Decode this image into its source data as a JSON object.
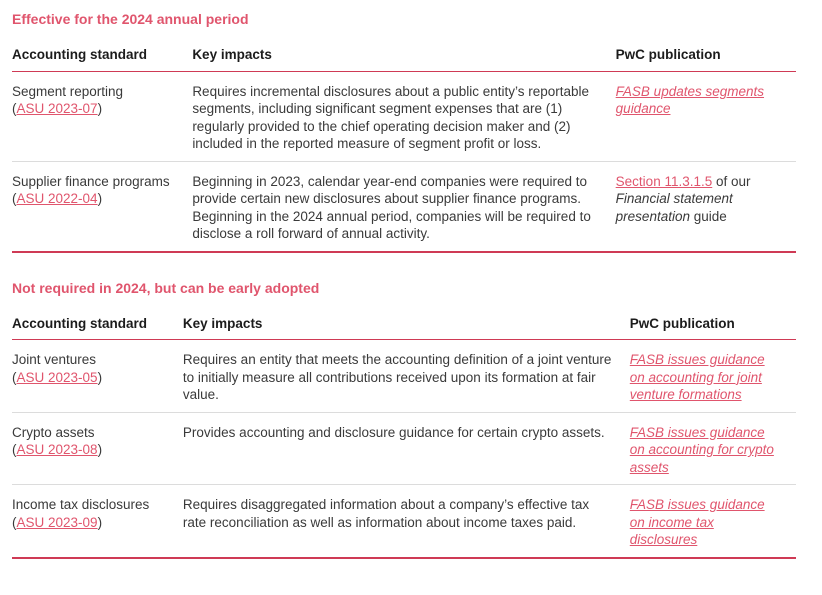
{
  "colors": {
    "accent_rose": "#e0556d",
    "rule_red": "#cf3a55",
    "row_divider": "#dcdcdc",
    "header_text": "#1c1c1c",
    "body_text": "#3a3a3a"
  },
  "sections": [
    {
      "heading": "Effective for the 2024 annual period",
      "columns": [
        "Accounting standard",
        "Key impacts",
        "PwC publication"
      ],
      "rows": [
        {
          "standard": "Segment reporting",
          "asu": "ASU 2023-07",
          "impact": "Requires incremental disclosures about a public entity’s reportable segments, including significant segment expenses that are (1) regularly provided to the chief operating decision maker and (2) included in the reported measure of segment profit or loss.",
          "publication": [
            {
              "text": "FASB updates segments guidance",
              "type": "link_italic"
            }
          ]
        },
        {
          "standard": "Supplier finance programs",
          "asu": "ASU 2022-04",
          "impact": "Beginning in 2023, calendar year-end companies were required to provide certain new disclosures about supplier finance programs. Beginning in the 2024 annual period, companies will be required to disclose a roll forward of annual activity.",
          "publication": [
            {
              "text": "Section 11.3.1.5",
              "type": "link"
            },
            {
              "text": " of our ",
              "type": "plain"
            },
            {
              "text": "Financial statement presentation",
              "type": "italic"
            },
            {
              "text": " guide",
              "type": "plain"
            }
          ]
        }
      ]
    },
    {
      "heading": "Not required in 2024, but can be early adopted",
      "columns": [
        "Accounting standard",
        "Key impacts",
        "PwC publication"
      ],
      "rows": [
        {
          "standard": "Joint ventures",
          "asu": "ASU 2023-05",
          "impact": "Requires an entity that meets the accounting definition of a joint venture to initially measure all contributions received upon its formation at fair value.",
          "publication": [
            {
              "text": "FASB issues guidance on accounting for joint venture formations",
              "type": "link_italic"
            }
          ]
        },
        {
          "standard": "Crypto assets",
          "asu": "ASU 2023-08",
          "impact": "Provides accounting and disclosure guidance for certain crypto assets.",
          "publication": [
            {
              "text": "FASB issues guidance on accounting for crypto assets",
              "type": "link_italic"
            }
          ]
        },
        {
          "standard": "Income tax disclosures",
          "asu": "ASU 2023-09",
          "impact": "Requires disaggregated information about a company’s effective tax rate reconciliation as well as information about income taxes paid.",
          "publication": [
            {
              "text": "FASB issues guidance on income tax disclosures",
              "type": "link_italic"
            }
          ]
        }
      ]
    }
  ]
}
